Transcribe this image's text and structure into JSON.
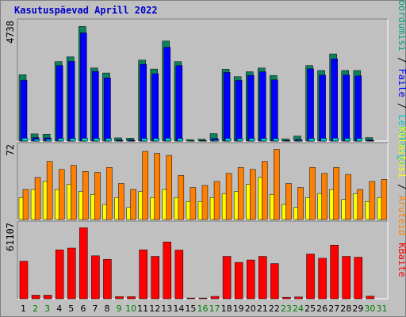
{
  "title": "Kasutuspäevad Aprill 2022",
  "colors": {
    "bg": "#c0c0c0",
    "lehed": "#0000ff",
    "lehed_hi": "#4a90ff",
    "failid": "#0d8060",
    "failid_hi": "#22aa80",
    "kulastused": "#00c8c8",
    "kulastajad": "#ffff00",
    "baidid": "#ff0000",
    "weekday_text": "#000000",
    "weekend_text": "#008000"
  },
  "chart_data": [
    {
      "type": "bar",
      "panel": "top",
      "ymax_label": "4738",
      "ylim": [
        0,
        4738
      ],
      "legend": [
        {
          "name": "Pöördumisi",
          "color": "#00a080"
        },
        {
          "name": "Faile",
          "color": "#0000ff"
        },
        {
          "name": "Lehekülgi",
          "color": "#00c8c8"
        }
      ],
      "legend_separator": " / ",
      "categories": [
        "1",
        "2",
        "3",
        "4",
        "5",
        "6",
        "7",
        "8",
        "9",
        "10",
        "11",
        "12",
        "13",
        "14",
        "15",
        "16",
        "17",
        "18",
        "19",
        "20",
        "21",
        "22",
        "23",
        "24",
        "25",
        "26",
        "27",
        "28",
        "29",
        "30",
        "31"
      ],
      "series": [
        {
          "name": "Pöördumisi",
          "values": [
            2680,
            290,
            280,
            3210,
            3400,
            4630,
            2950,
            2750,
            130,
            120,
            3270,
            2910,
            4040,
            3210,
            60,
            80,
            300,
            2900,
            2600,
            2800,
            2950,
            2650,
            90,
            200,
            3050,
            2850,
            3520,
            2850,
            2850,
            140,
            0
          ]
        },
        {
          "name": "Faile",
          "values": [
            2460,
            140,
            130,
            3050,
            3220,
            4370,
            2810,
            2550,
            40,
            40,
            3100,
            2720,
            3790,
            3050,
            10,
            20,
            100,
            2770,
            2450,
            2650,
            2800,
            2470,
            20,
            60,
            2920,
            2660,
            3320,
            2670,
            2630,
            40,
            0
          ]
        },
        {
          "name": "Lehekülgi",
          "values": [
            120,
            70,
            70,
            110,
            110,
            120,
            110,
            110,
            10,
            10,
            110,
            110,
            120,
            110,
            5,
            5,
            40,
            110,
            100,
            110,
            110,
            100,
            5,
            30,
            110,
            110,
            120,
            110,
            110,
            10,
            0
          ]
        }
      ]
    },
    {
      "type": "bar",
      "panel": "middle",
      "ymax_label": "72",
      "ylim": [
        0,
        72
      ],
      "legend": [
        {
          "name": "Külastusi",
          "color": "#ffff00"
        },
        {
          "name": "Aruteid",
          "color": "#ff8000"
        }
      ],
      "legend_separator": " / ",
      "categories": [
        "1",
        "2",
        "3",
        "4",
        "5",
        "6",
        "7",
        "8",
        "9",
        "10",
        "11",
        "12",
        "13",
        "14",
        "15",
        "16",
        "17",
        "18",
        "19",
        "20",
        "21",
        "22",
        "23",
        "24",
        "25",
        "26",
        "27",
        "28",
        "29",
        "30",
        "31"
      ],
      "series": [
        {
          "name": "Külastusi",
          "values": [
            22,
            30,
            38,
            30,
            35,
            28,
            25,
            15,
            22,
            12,
            28,
            22,
            30,
            22,
            18,
            18,
            22,
            26,
            28,
            35,
            42,
            25,
            15,
            12,
            22,
            26,
            30,
            20,
            26,
            18,
            22
          ]
        },
        {
          "name": "Aruteid",
          "values": [
            30,
            42,
            58,
            50,
            54,
            48,
            47,
            52,
            36,
            30,
            68,
            66,
            64,
            44,
            32,
            34,
            38,
            46,
            52,
            50,
            58,
            70,
            36,
            32,
            52,
            46,
            52,
            45,
            30,
            38,
            40
          ]
        }
      ]
    },
    {
      "type": "bar",
      "panel": "bottom",
      "ymax_label": "61107",
      "ylim": [
        0,
        61107
      ],
      "legend": [
        {
          "name": "KBaite",
          "color": "#ff0000"
        }
      ],
      "legend_separator": "",
      "categories": [
        "1",
        "2",
        "3",
        "4",
        "5",
        "6",
        "7",
        "8",
        "9",
        "10",
        "11",
        "12",
        "13",
        "14",
        "15",
        "16",
        "17",
        "18",
        "19",
        "20",
        "21",
        "22",
        "23",
        "24",
        "25",
        "26",
        "27",
        "28",
        "29",
        "30",
        "31"
      ],
      "series": [
        {
          "name": "KBaite",
          "values": [
            31500,
            3000,
            3000,
            41000,
            42500,
            59500,
            36000,
            33000,
            1800,
            1800,
            41000,
            35500,
            47600,
            40800,
            600,
            600,
            2000,
            35500,
            30500,
            32500,
            35500,
            29500,
            1200,
            1500,
            37500,
            34000,
            45000,
            35500,
            34800,
            2200,
            0
          ]
        }
      ]
    }
  ],
  "day_labels": [
    "1",
    "2",
    "3",
    "4",
    "5",
    "6",
    "7",
    "8",
    "9",
    "10",
    "11",
    "12",
    "13",
    "14",
    "15",
    "16",
    "17",
    "18",
    "19",
    "20",
    "21",
    "22",
    "23",
    "24",
    "25",
    "26",
    "27",
    "28",
    "29",
    "30",
    "31"
  ],
  "weekend_days": [
    2,
    3,
    9,
    10,
    16,
    17,
    23,
    24,
    30,
    31
  ]
}
